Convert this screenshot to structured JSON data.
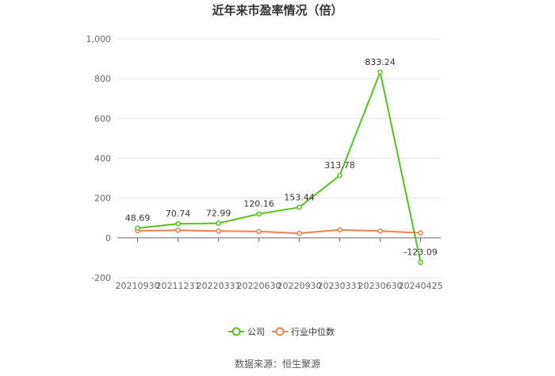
{
  "chart_data": {
    "type": "line",
    "title": "近年来市盈率情况（倍）",
    "categories": [
      "20210930",
      "20211231",
      "20220331",
      "20220630",
      "20220930",
      "20230331",
      "20230630",
      "20240425"
    ],
    "yticks": [
      "-200",
      "0",
      "200",
      "400",
      "600",
      "800",
      "1,000"
    ],
    "ylim": [
      -200,
      1000
    ],
    "grid": true,
    "legend_position": "bottom",
    "series": [
      {
        "name": "公司",
        "color": "#52c41a",
        "values": [
          48.69,
          70.74,
          72.99,
          120.16,
          153.44,
          313.78,
          833.24,
          -123.09
        ],
        "labels": [
          "48.69",
          "70.74",
          "72.99",
          "120.16",
          "153.44",
          "313.78",
          "833.24",
          "-123.09"
        ]
      },
      {
        "name": "行业中位数",
        "color": "#f08050",
        "values": [
          35,
          38,
          34,
          32,
          23,
          40,
          34,
          25
        ]
      }
    ]
  },
  "source": "数据来源：恒生聚源"
}
